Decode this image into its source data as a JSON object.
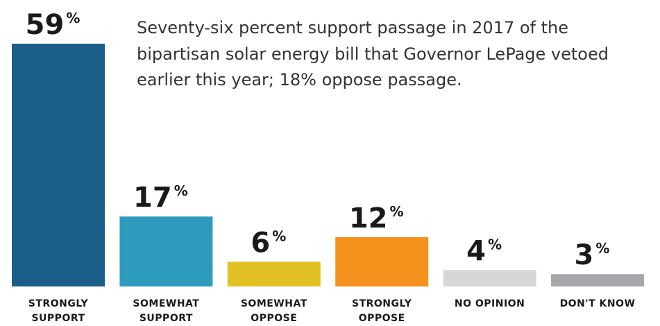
{
  "chart_data": {
    "type": "bar",
    "annotation_lines": [
      "Seventy-six percent support passage in 2017 of the",
      "bipartisan solar energy bill that Governor LePage vetoed",
      "earlier this year; 18% oppose passage."
    ],
    "categories": [
      "STRONGLY SUPPORT",
      "SOMEWHAT SUPPORT",
      "SOMEWHAT OPPOSE",
      "STRONGLY OPPOSE",
      "NO OPINION",
      "DON'T KNOW"
    ],
    "values": [
      59,
      17,
      6,
      12,
      4,
      3
    ],
    "value_suffix": "%",
    "colors": [
      "#1b5e8a",
      "#2e9bbd",
      "#e2c124",
      "#f5921e",
      "#d6d6d8",
      "#a6a8ab"
    ]
  }
}
